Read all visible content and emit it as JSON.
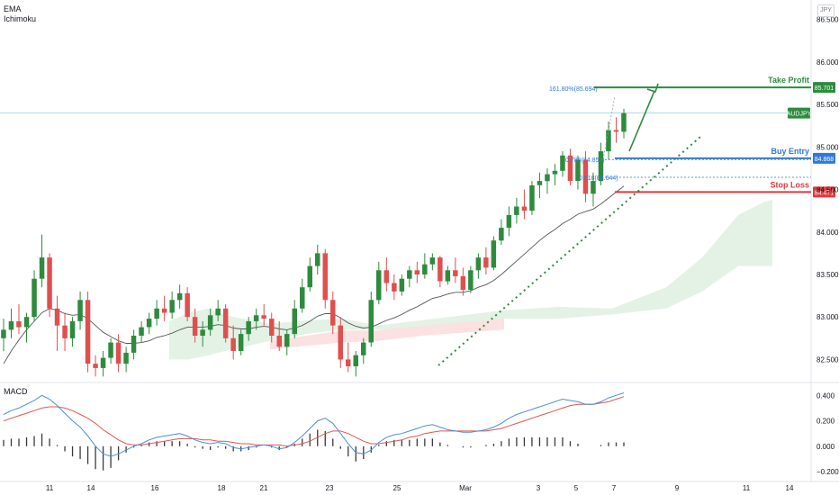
{
  "indicators": {
    "ema": "EMA",
    "ichimoku": "Ichimoku",
    "macd": "MACD"
  },
  "currency_button": "JPY",
  "colors": {
    "up": "#2e8b3e",
    "down": "#e04f4f",
    "ema": "#555555",
    "macd_line": "#4a90d9",
    "signal_line": "#e0574f",
    "cloud_green": "#e3f2e5",
    "cloud_red": "#fbe1e1",
    "take_profit": "#2e8b3e",
    "buy_entry": "#2f7ad8",
    "stop_loss": "#e0393e",
    "trendline": "#2e8b3e",
    "price_line": "#8fd3e0"
  },
  "chart_data": [
    {
      "type": "candlestick",
      "symbol": "AUDJPY",
      "y_ticks": [
        "86.500",
        "86.000",
        "85.500",
        "85.000",
        "84.500",
        "84.000",
        "83.500",
        "83.000",
        "82.500"
      ],
      "y_tick_values": [
        86.5,
        86.0,
        85.5,
        85.0,
        84.5,
        84.0,
        83.5,
        83.0,
        82.5
      ],
      "ylim": [
        82.24,
        86.73
      ],
      "x_ticks": [
        "11",
        "14",
        "16",
        "18",
        "21",
        "23",
        "25",
        "Mar",
        "3",
        "5",
        "7",
        "9",
        "11",
        "14"
      ],
      "candles": [
        [
          82.75,
          82.98,
          82.6,
          82.85
        ],
        [
          82.85,
          83.1,
          82.75,
          82.95
        ],
        [
          82.95,
          83.15,
          82.8,
          82.88
        ],
        [
          82.88,
          83.05,
          82.7,
          83.0
        ],
        [
          83.0,
          83.55,
          82.95,
          83.45
        ],
        [
          83.45,
          83.97,
          83.35,
          83.7
        ],
        [
          83.7,
          83.75,
          83.0,
          83.1
        ],
        [
          83.1,
          83.25,
          82.6,
          82.9
        ],
        [
          82.9,
          83.05,
          82.6,
          82.75
        ],
        [
          82.75,
          83.0,
          82.65,
          82.95
        ],
        [
          82.95,
          83.3,
          82.85,
          83.2
        ],
        [
          83.2,
          83.3,
          82.35,
          82.45
        ],
        [
          82.45,
          82.55,
          82.3,
          82.4
        ],
        [
          82.4,
          82.6,
          82.3,
          82.52
        ],
        [
          82.52,
          82.75,
          82.45,
          82.7
        ],
        [
          82.7,
          82.8,
          82.35,
          82.45
        ],
        [
          82.45,
          82.65,
          82.35,
          82.58
        ],
        [
          82.58,
          82.85,
          82.5,
          82.78
        ],
        [
          82.78,
          82.95,
          82.7,
          82.88
        ],
        [
          82.88,
          83.05,
          82.8,
          82.98
        ],
        [
          82.98,
          83.2,
          82.9,
          83.1
        ],
        [
          83.1,
          83.25,
          82.95,
          83.05
        ],
        [
          83.05,
          83.3,
          82.98,
          83.2
        ],
        [
          83.2,
          83.38,
          83.1,
          83.28
        ],
        [
          83.28,
          83.35,
          82.95,
          83.0
        ],
        [
          83.0,
          83.1,
          82.7,
          82.78
        ],
        [
          82.78,
          82.95,
          82.65,
          82.85
        ],
        [
          82.85,
          83.1,
          82.78,
          83.02
        ],
        [
          83.02,
          83.2,
          82.95,
          83.1
        ],
        [
          83.1,
          83.15,
          82.7,
          82.75
        ],
        [
          82.75,
          82.9,
          82.5,
          82.6
        ],
        [
          82.6,
          82.85,
          82.55,
          82.8
        ],
        [
          82.8,
          83.0,
          82.72,
          82.95
        ],
        [
          82.95,
          83.1,
          82.85,
          83.02
        ],
        [
          83.02,
          83.15,
          82.9,
          82.98
        ],
        [
          82.98,
          83.05,
          82.7,
          82.78
        ],
        [
          82.78,
          82.95,
          82.6,
          82.65
        ],
        [
          82.65,
          82.85,
          82.55,
          82.8
        ],
        [
          82.8,
          83.2,
          82.75,
          83.1
        ],
        [
          83.1,
          83.45,
          83.05,
          83.35
        ],
        [
          83.35,
          83.7,
          83.3,
          83.6
        ],
        [
          83.6,
          83.85,
          83.5,
          83.75
        ],
        [
          83.75,
          83.8,
          83.1,
          83.2
        ],
        [
          83.2,
          83.3,
          82.8,
          82.9
        ],
        [
          82.9,
          83.0,
          82.4,
          82.5
        ],
        [
          82.5,
          82.7,
          82.35,
          82.42
        ],
        [
          82.42,
          82.6,
          82.3,
          82.55
        ],
        [
          82.55,
          82.75,
          82.45,
          82.7
        ],
        [
          82.7,
          83.3,
          82.65,
          83.2
        ],
        [
          83.2,
          83.65,
          83.15,
          83.55
        ],
        [
          83.55,
          83.7,
          83.3,
          83.4
        ],
        [
          83.4,
          83.5,
          83.2,
          83.3
        ],
        [
          83.3,
          83.5,
          83.25,
          83.45
        ],
        [
          83.45,
          83.6,
          83.35,
          83.55
        ],
        [
          83.55,
          83.65,
          83.4,
          83.5
        ],
        [
          83.5,
          83.75,
          83.45,
          83.62
        ],
        [
          83.62,
          83.75,
          83.55,
          83.7
        ],
        [
          83.7,
          83.72,
          83.35,
          83.42
        ],
        [
          83.42,
          83.6,
          83.38,
          83.55
        ],
        [
          83.55,
          83.7,
          83.4,
          83.48
        ],
        [
          83.48,
          83.58,
          83.25,
          83.32
        ],
        [
          83.32,
          83.6,
          83.28,
          83.55
        ],
        [
          83.55,
          83.75,
          83.45,
          83.7
        ],
        [
          83.7,
          83.82,
          83.5,
          83.58
        ],
        [
          83.58,
          83.95,
          83.55,
          83.9
        ],
        [
          83.9,
          84.15,
          83.85,
          84.05
        ],
        [
          84.05,
          84.3,
          83.95,
          84.2
        ],
        [
          84.2,
          84.4,
          84.1,
          84.3
        ],
        [
          84.3,
          84.5,
          84.15,
          84.25
        ],
        [
          84.25,
          84.6,
          84.2,
          84.55
        ],
        [
          84.55,
          84.7,
          84.4,
          84.6
        ],
        [
          84.6,
          84.75,
          84.45,
          84.68
        ],
        [
          84.68,
          84.8,
          84.55,
          84.72
        ],
        [
          84.72,
          84.95,
          84.65,
          84.9
        ],
        [
          84.9,
          84.98,
          84.55,
          84.6
        ],
        [
          84.6,
          84.9,
          84.5,
          84.85
        ],
        [
          84.85,
          84.95,
          84.35,
          84.45
        ],
        [
          84.45,
          84.7,
          84.3,
          84.6
        ],
        [
          84.6,
          85.05,
          84.55,
          84.95
        ],
        [
          84.95,
          85.3,
          84.85,
          85.2
        ],
        [
          85.2,
          85.35,
          85.05,
          85.18
        ],
        [
          85.18,
          85.45,
          85.1,
          85.4
        ]
      ],
      "ema": [
        82.45,
        82.6,
        82.73,
        82.85,
        82.95,
        83.05,
        83.1,
        83.08,
        83.04,
        83.02,
        83.03,
        82.98,
        82.9,
        82.82,
        82.77,
        82.72,
        82.69,
        82.69,
        82.7,
        82.72,
        82.76,
        82.78,
        82.81,
        82.85,
        82.88,
        82.88,
        82.88,
        82.89,
        82.91,
        82.9,
        82.87,
        82.86,
        82.86,
        82.88,
        82.89,
        82.88,
        82.86,
        82.85,
        82.87,
        82.9,
        82.95,
        83.01,
        83.04,
        83.04,
        82.99,
        82.93,
        82.89,
        82.87,
        82.88,
        82.92,
        82.96,
        82.99,
        83.03,
        83.08,
        83.12,
        83.17,
        83.22,
        83.24,
        83.27,
        83.29,
        83.29,
        83.31,
        83.35,
        83.38,
        83.43,
        83.5,
        83.58,
        83.66,
        83.74,
        83.82,
        83.9,
        83.97,
        84.03,
        84.1,
        84.15,
        84.21,
        84.24,
        84.27,
        84.33,
        84.4,
        84.47,
        84.54
      ],
      "cloud_green": [
        [
          188,
          82.5,
          82.95
        ],
        [
          210,
          82.5,
          83.05
        ],
        [
          232,
          82.55,
          83.1
        ],
        [
          250,
          82.6,
          83.02
        ],
        [
          300,
          82.72,
          82.92
        ],
        [
          340,
          82.8,
          82.96
        ],
        [
          380,
          82.85,
          82.98
        ],
        [
          420,
          82.85,
          82.9
        ],
        [
          560,
          82.98,
          83.08
        ],
        [
          620,
          82.98,
          83.12
        ],
        [
          680,
          83.03,
          83.1
        ],
        [
          740,
          83.1,
          83.35
        ],
        [
          780,
          83.3,
          83.7
        ],
        [
          820,
          83.6,
          84.2
        ],
        [
          848,
          83.6,
          84.35
        ],
        [
          858,
          83.6,
          84.38
        ]
      ],
      "cloud_red": [
        [
          300,
          82.62,
          82.72
        ],
        [
          340,
          82.66,
          82.78
        ],
        [
          380,
          82.7,
          82.84
        ],
        [
          420,
          82.72,
          82.84
        ],
        [
          470,
          82.78,
          82.95
        ],
        [
          520,
          82.82,
          83.02
        ],
        [
          545,
          82.84,
          83.0
        ],
        [
          560,
          82.85,
          82.98
        ]
      ],
      "levels": [
        {
          "name": "Take Profit",
          "value": 85.701,
          "label": "85.701"
        },
        {
          "name": "Buy Entry",
          "value": 84.868,
          "label": "84.868"
        },
        {
          "name": "Stop Loss",
          "value": 84.471,
          "label": "84.471"
        }
      ],
      "current_price": 85.4,
      "fibonacci": [
        {
          "label": "161.80%(85.694)",
          "value": 85.694
        },
        {
          "label": "0.786(84.853)",
          "value": 84.853
        },
        {
          "label": "0.618(84.644)",
          "value": 84.644
        }
      ]
    },
    {
      "type": "line",
      "title": "MACD",
      "y_ticks": [
        "0.400",
        "0.200",
        "0.000",
        "−0.200"
      ],
      "y_tick_values": [
        0.4,
        0.2,
        0.0,
        -0.2
      ],
      "ylim": [
        -0.27,
        0.48
      ],
      "series": [
        {
          "name": "MACD",
          "values": [
            0.25,
            0.28,
            0.3,
            0.33,
            0.36,
            0.4,
            0.37,
            0.32,
            0.26,
            0.2,
            0.15,
            0.08,
            0.0,
            -0.06,
            -0.08,
            -0.06,
            -0.03,
            0.0,
            0.02,
            0.05,
            0.07,
            0.08,
            0.09,
            0.1,
            0.08,
            0.05,
            0.03,
            0.02,
            0.03,
            0.02,
            -0.01,
            -0.02,
            -0.01,
            0.0,
            0.01,
            0.0,
            -0.02,
            -0.01,
            0.03,
            0.08,
            0.14,
            0.2,
            0.22,
            0.18,
            0.1,
            0.02,
            -0.05,
            -0.06,
            -0.03,
            0.03,
            0.07,
            0.09,
            0.1,
            0.12,
            0.14,
            0.16,
            0.17,
            0.15,
            0.13,
            0.12,
            0.11,
            0.11,
            0.12,
            0.13,
            0.15,
            0.18,
            0.22,
            0.25,
            0.27,
            0.29,
            0.31,
            0.33,
            0.35,
            0.37,
            0.36,
            0.35,
            0.33,
            0.33,
            0.35,
            0.38,
            0.4,
            0.42
          ]
        },
        {
          "name": "Signal",
          "values": [
            0.2,
            0.22,
            0.24,
            0.26,
            0.28,
            0.3,
            0.31,
            0.31,
            0.3,
            0.28,
            0.25,
            0.22,
            0.18,
            0.13,
            0.09,
            0.05,
            0.02,
            0.01,
            0.01,
            0.02,
            0.03,
            0.04,
            0.05,
            0.06,
            0.06,
            0.06,
            0.05,
            0.05,
            0.04,
            0.04,
            0.03,
            0.02,
            0.02,
            0.01,
            0.01,
            0.01,
            0.01,
            0.0,
            0.01,
            0.02,
            0.04,
            0.07,
            0.1,
            0.12,
            0.12,
            0.1,
            0.07,
            0.04,
            0.02,
            0.02,
            0.03,
            0.04,
            0.05,
            0.07,
            0.08,
            0.1,
            0.11,
            0.12,
            0.12,
            0.12,
            0.12,
            0.12,
            0.12,
            0.12,
            0.13,
            0.14,
            0.16,
            0.18,
            0.2,
            0.22,
            0.24,
            0.26,
            0.28,
            0.3,
            0.32,
            0.33,
            0.33,
            0.33,
            0.34,
            0.35,
            0.37,
            0.39
          ]
        }
      ]
    }
  ]
}
